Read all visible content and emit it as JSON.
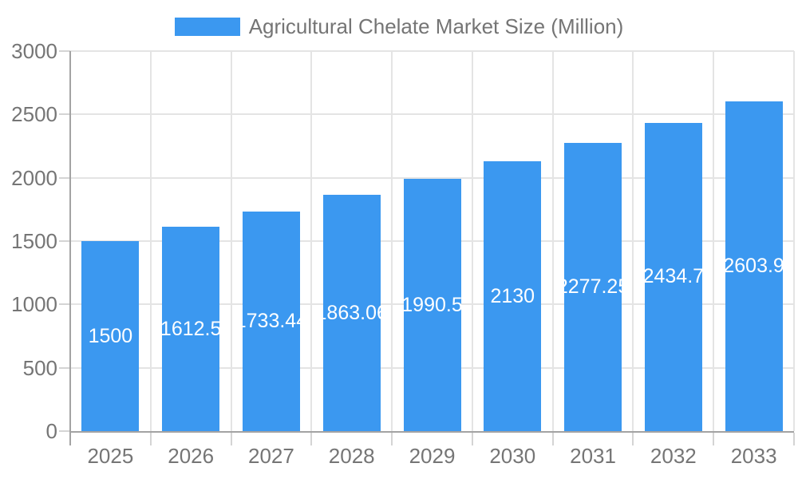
{
  "legend": {
    "label": "Agricultural Chelate Market Size (Million)"
  },
  "chart_data": {
    "type": "bar",
    "title": "Agricultural Chelate Market Size (Million)",
    "categories": [
      "2025",
      "2026",
      "2027",
      "2028",
      "2029",
      "2030",
      "2031",
      "2032",
      "2033"
    ],
    "values": [
      1500,
      1612.5,
      1733.44,
      1863.06,
      1990.5,
      2130,
      2277.25,
      2434.7,
      2603.9
    ],
    "bar_labels": [
      "1500",
      "1612.5",
      "1733.44",
      "1863.06",
      "1990.5",
      "2130",
      "2277.25",
      "2434.7",
      "2603.9"
    ],
    "xlabel": "",
    "ylabel": "",
    "ylim": [
      0,
      3000
    ],
    "yticks": [
      0,
      500,
      1000,
      1500,
      2000,
      2500,
      3000
    ],
    "grid": "on",
    "legend_position": "top",
    "colors": {
      "bar": "#3b98f0",
      "bar_value_text": "#ffffff",
      "axis_line": "#a3a3a3",
      "gridline": "#e4e4e4",
      "tick": "#d4d4d4",
      "axis_text": "#757575",
      "background": "#ffffff"
    }
  }
}
